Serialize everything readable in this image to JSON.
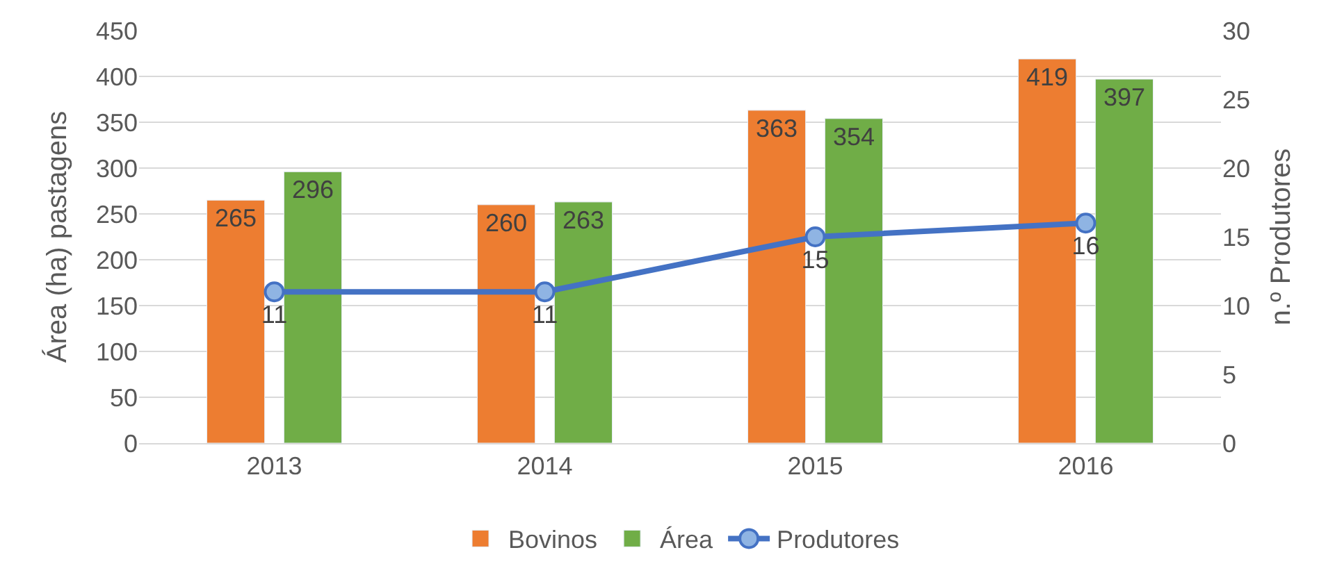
{
  "chart_data": {
    "type": "bar",
    "categories": [
      "2013",
      "2014",
      "2015",
      "2016"
    ],
    "ylabel": "Área (ha) pastagens",
    "y2label": "n.º Produtores",
    "ylim": [
      0,
      450
    ],
    "yticks": [
      0,
      50,
      100,
      150,
      200,
      250,
      300,
      350,
      400,
      450
    ],
    "y2lim": [
      0,
      30
    ],
    "y2ticks": [
      0,
      5,
      10,
      15,
      20,
      25,
      30
    ],
    "grid": "y",
    "legend": "bottom",
    "data_labels": true,
    "series": [
      {
        "name": "Bovinos",
        "color": "#ed7d31",
        "values": [
          265,
          260,
          363,
          419
        ]
      },
      {
        "name": "Área",
        "color": "#70ad47",
        "values": [
          296,
          263,
          354,
          397
        ]
      },
      {
        "name": "Produtores",
        "type": "line",
        "axis": "y2",
        "color": "#4472c4",
        "marker": "circle",
        "values": [
          11,
          11,
          15,
          16
        ]
      }
    ]
  }
}
